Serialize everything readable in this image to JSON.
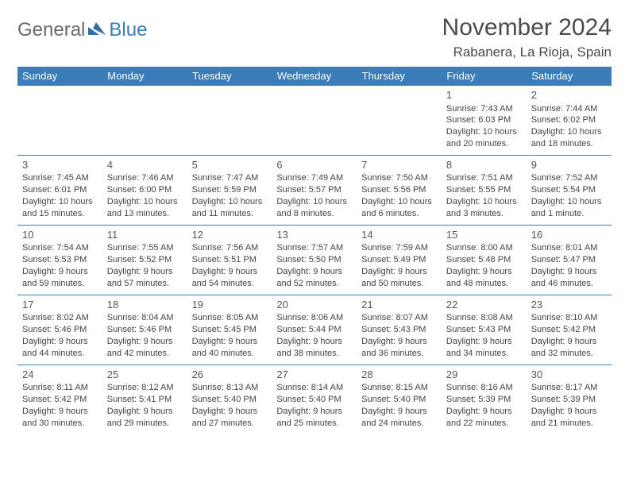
{
  "logo": {
    "text1": "General",
    "text2": "Blue",
    "mark_color": "#2f6fa8"
  },
  "title": "November 2024",
  "location": "Rabanera, La Rioja, Spain",
  "columns": [
    "Sunday",
    "Monday",
    "Tuesday",
    "Wednesday",
    "Thursday",
    "Friday",
    "Saturday"
  ],
  "colors": {
    "header_bg": "#3a7db8",
    "header_text": "#ffffff",
    "border": "#3a7db8",
    "body_text": "#444444",
    "title_text": "#4a4a4a",
    "logo_gray": "#6a6a6a",
    "logo_blue": "#3a7db8",
    "background": "#ffffff"
  },
  "fonts": {
    "title_size": 30,
    "location_size": 17,
    "header_size": 13,
    "daynum_size": 13,
    "cell_size": 11,
    "logo_size": 24
  },
  "weeks": [
    [
      null,
      null,
      null,
      null,
      null,
      {
        "n": "1",
        "sr": "Sunrise: 7:43 AM",
        "ss": "Sunset: 6:03 PM",
        "d1": "Daylight: 10 hours",
        "d2": "and 20 minutes."
      },
      {
        "n": "2",
        "sr": "Sunrise: 7:44 AM",
        "ss": "Sunset: 6:02 PM",
        "d1": "Daylight: 10 hours",
        "d2": "and 18 minutes."
      }
    ],
    [
      {
        "n": "3",
        "sr": "Sunrise: 7:45 AM",
        "ss": "Sunset: 6:01 PM",
        "d1": "Daylight: 10 hours",
        "d2": "and 15 minutes."
      },
      {
        "n": "4",
        "sr": "Sunrise: 7:46 AM",
        "ss": "Sunset: 6:00 PM",
        "d1": "Daylight: 10 hours",
        "d2": "and 13 minutes."
      },
      {
        "n": "5",
        "sr": "Sunrise: 7:47 AM",
        "ss": "Sunset: 5:59 PM",
        "d1": "Daylight: 10 hours",
        "d2": "and 11 minutes."
      },
      {
        "n": "6",
        "sr": "Sunrise: 7:49 AM",
        "ss": "Sunset: 5:57 PM",
        "d1": "Daylight: 10 hours",
        "d2": "and 8 minutes."
      },
      {
        "n": "7",
        "sr": "Sunrise: 7:50 AM",
        "ss": "Sunset: 5:56 PM",
        "d1": "Daylight: 10 hours",
        "d2": "and 6 minutes."
      },
      {
        "n": "8",
        "sr": "Sunrise: 7:51 AM",
        "ss": "Sunset: 5:55 PM",
        "d1": "Daylight: 10 hours",
        "d2": "and 3 minutes."
      },
      {
        "n": "9",
        "sr": "Sunrise: 7:52 AM",
        "ss": "Sunset: 5:54 PM",
        "d1": "Daylight: 10 hours",
        "d2": "and 1 minute."
      }
    ],
    [
      {
        "n": "10",
        "sr": "Sunrise: 7:54 AM",
        "ss": "Sunset: 5:53 PM",
        "d1": "Daylight: 9 hours",
        "d2": "and 59 minutes."
      },
      {
        "n": "11",
        "sr": "Sunrise: 7:55 AM",
        "ss": "Sunset: 5:52 PM",
        "d1": "Daylight: 9 hours",
        "d2": "and 57 minutes."
      },
      {
        "n": "12",
        "sr": "Sunrise: 7:56 AM",
        "ss": "Sunset: 5:51 PM",
        "d1": "Daylight: 9 hours",
        "d2": "and 54 minutes."
      },
      {
        "n": "13",
        "sr": "Sunrise: 7:57 AM",
        "ss": "Sunset: 5:50 PM",
        "d1": "Daylight: 9 hours",
        "d2": "and 52 minutes."
      },
      {
        "n": "14",
        "sr": "Sunrise: 7:59 AM",
        "ss": "Sunset: 5:49 PM",
        "d1": "Daylight: 9 hours",
        "d2": "and 50 minutes."
      },
      {
        "n": "15",
        "sr": "Sunrise: 8:00 AM",
        "ss": "Sunset: 5:48 PM",
        "d1": "Daylight: 9 hours",
        "d2": "and 48 minutes."
      },
      {
        "n": "16",
        "sr": "Sunrise: 8:01 AM",
        "ss": "Sunset: 5:47 PM",
        "d1": "Daylight: 9 hours",
        "d2": "and 46 minutes."
      }
    ],
    [
      {
        "n": "17",
        "sr": "Sunrise: 8:02 AM",
        "ss": "Sunset: 5:46 PM",
        "d1": "Daylight: 9 hours",
        "d2": "and 44 minutes."
      },
      {
        "n": "18",
        "sr": "Sunrise: 8:04 AM",
        "ss": "Sunset: 5:46 PM",
        "d1": "Daylight: 9 hours",
        "d2": "and 42 minutes."
      },
      {
        "n": "19",
        "sr": "Sunrise: 8:05 AM",
        "ss": "Sunset: 5:45 PM",
        "d1": "Daylight: 9 hours",
        "d2": "and 40 minutes."
      },
      {
        "n": "20",
        "sr": "Sunrise: 8:06 AM",
        "ss": "Sunset: 5:44 PM",
        "d1": "Daylight: 9 hours",
        "d2": "and 38 minutes."
      },
      {
        "n": "21",
        "sr": "Sunrise: 8:07 AM",
        "ss": "Sunset: 5:43 PM",
        "d1": "Daylight: 9 hours",
        "d2": "and 36 minutes."
      },
      {
        "n": "22",
        "sr": "Sunrise: 8:08 AM",
        "ss": "Sunset: 5:43 PM",
        "d1": "Daylight: 9 hours",
        "d2": "and 34 minutes."
      },
      {
        "n": "23",
        "sr": "Sunrise: 8:10 AM",
        "ss": "Sunset: 5:42 PM",
        "d1": "Daylight: 9 hours",
        "d2": "and 32 minutes."
      }
    ],
    [
      {
        "n": "24",
        "sr": "Sunrise: 8:11 AM",
        "ss": "Sunset: 5:42 PM",
        "d1": "Daylight: 9 hours",
        "d2": "and 30 minutes."
      },
      {
        "n": "25",
        "sr": "Sunrise: 8:12 AM",
        "ss": "Sunset: 5:41 PM",
        "d1": "Daylight: 9 hours",
        "d2": "and 29 minutes."
      },
      {
        "n": "26",
        "sr": "Sunrise: 8:13 AM",
        "ss": "Sunset: 5:40 PM",
        "d1": "Daylight: 9 hours",
        "d2": "and 27 minutes."
      },
      {
        "n": "27",
        "sr": "Sunrise: 8:14 AM",
        "ss": "Sunset: 5:40 PM",
        "d1": "Daylight: 9 hours",
        "d2": "and 25 minutes."
      },
      {
        "n": "28",
        "sr": "Sunrise: 8:15 AM",
        "ss": "Sunset: 5:40 PM",
        "d1": "Daylight: 9 hours",
        "d2": "and 24 minutes."
      },
      {
        "n": "29",
        "sr": "Sunrise: 8:16 AM",
        "ss": "Sunset: 5:39 PM",
        "d1": "Daylight: 9 hours",
        "d2": "and 22 minutes."
      },
      {
        "n": "30",
        "sr": "Sunrise: 8:17 AM",
        "ss": "Sunset: 5:39 PM",
        "d1": "Daylight: 9 hours",
        "d2": "and 21 minutes."
      }
    ]
  ]
}
